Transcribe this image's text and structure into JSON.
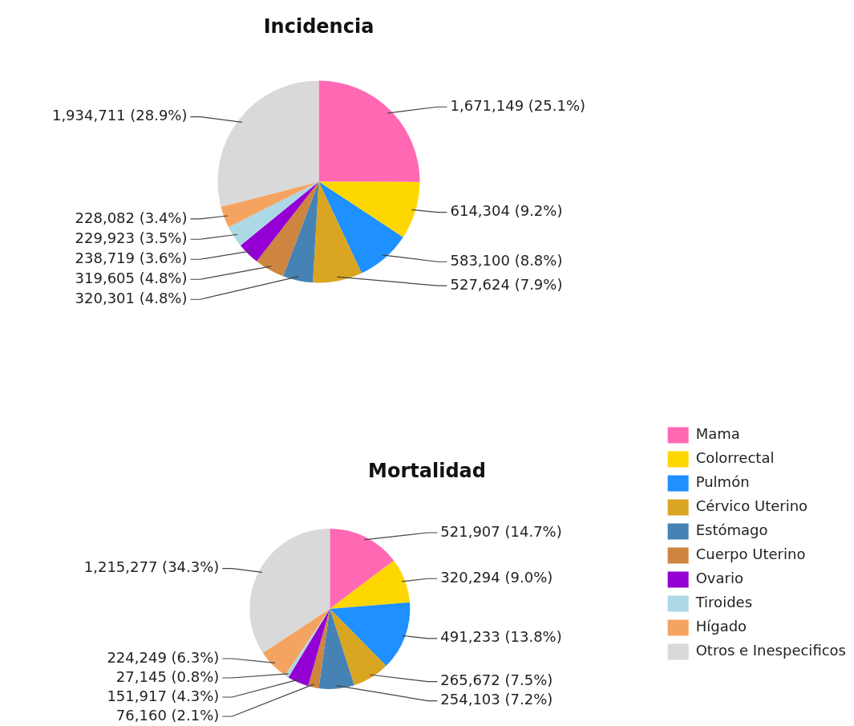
{
  "chart_data": [
    {
      "type": "pie",
      "title": "Incidencia",
      "categories": [
        null,
        null,
        null,
        null,
        null,
        null,
        null,
        null,
        null,
        null
      ],
      "values": [
        1671149,
        614304,
        583100,
        527624,
        320301,
        319605,
        238719,
        229923,
        228082,
        1934711
      ],
      "value_labels": [
        "1,671,149 (25.1%)",
        "614,304 (9.2%)",
        "583,100 (8.8%)",
        "527,624 (7.9%)",
        "320,301 (4.8%)",
        "319,605 (4.8%)",
        "238,719 (3.6%)",
        "229,923 (3.5%)",
        "228,082 (3.4%)",
        "1,934,711 (28.9%)"
      ],
      "colors": [
        "#ff69b4",
        "#ffd700",
        "#1e90ff",
        "#daa520",
        "#4682b4",
        "#cd853f",
        "#9400d3",
        "#add8e6",
        "#f4a460",
        "#d9d9d9"
      ]
    },
    {
      "type": "pie",
      "title": "Mortalidad",
      "categories": [
        "Mama",
        "Colorrectal",
        "Pulmón",
        "Cérvico Uterino",
        "Estómago",
        "Cuerpo Uterino",
        "Ovario",
        "Tiroides",
        "Hígado",
        "Otros e Inespecificos"
      ],
      "values": [
        521907,
        320294,
        491233,
        265672,
        254103,
        76160,
        151917,
        27145,
        224249,
        1215277
      ],
      "value_labels": [
        "521,907 (14.7%)",
        "320,294 (9.0%)",
        "491,233 (13.8%)",
        "265,672 (7.5%)",
        "254,103 (7.2%)",
        "76,160 (2.1%)",
        "151,917 (4.3%)",
        "27,145 (0.8%)",
        "224,249 (6.3%)",
        "1,215,277 (34.3%)"
      ],
      "colors": [
        "#ff69b4",
        "#ffd700",
        "#1e90ff",
        "#daa520",
        "#4682b4",
        "#cd853f",
        "#9400d3",
        "#add8e6",
        "#f4a460",
        "#d9d9d9"
      ],
      "legend": "right"
    }
  ]
}
